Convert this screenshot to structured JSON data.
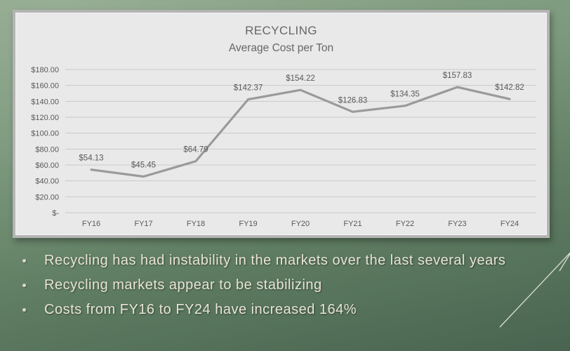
{
  "slide": {
    "bullets": [
      "Recycling has had instability in the markets over the last several years",
      "Recycling markets appear to be stabilizing",
      "Costs from FY16 to FY24 have increased 164%"
    ]
  },
  "chart_data": {
    "type": "line",
    "title": "RECYCLING",
    "subtitle": "Average Cost per Ton",
    "categories": [
      "FY16",
      "FY17",
      "FY18",
      "FY19",
      "FY20",
      "FY21",
      "FY22",
      "FY23",
      "FY24"
    ],
    "values": [
      54.13,
      45.45,
      64.79,
      142.37,
      154.22,
      126.83,
      134.35,
      157.83,
      142.82
    ],
    "data_labels": [
      "$54.13",
      "$45.45",
      "$64.79",
      "$142.37",
      "$154.22",
      "$126.83",
      "$134.35",
      "$157.83",
      "$142.82"
    ],
    "y_ticks": [
      "$180.00",
      "$160.00",
      "$140.00",
      "$120.00",
      "$100.00",
      "$80.00",
      "$60.00",
      "$40.00",
      "$20.00",
      "$-"
    ],
    "y_tick_values": [
      180,
      160,
      140,
      120,
      100,
      80,
      60,
      40,
      20,
      0
    ],
    "ylim": [
      0,
      180
    ],
    "xlabel": "",
    "ylabel": "",
    "grid": true,
    "legend": "none"
  },
  "colors": {
    "line": "#9a9a9a",
    "gridline": "#c9c9c9",
    "axis_text": "#595959",
    "data_label_text": "#595959",
    "card_fill": "#e9e9e9",
    "card_border": "#b4b4b4",
    "background_top": "#8da68a",
    "background_bottom": "#496450",
    "bullet_text": "#e9e5d6",
    "deco_line": "#f2f4ee"
  }
}
